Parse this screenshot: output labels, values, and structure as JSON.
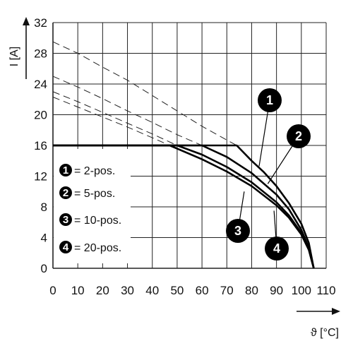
{
  "chart_data": {
    "type": "line",
    "xlabel": "ϑ [°C]",
    "ylabel": "I [A]",
    "xlim": [
      0,
      110
    ],
    "ylim": [
      0,
      32
    ],
    "xticks": [
      0,
      10,
      20,
      30,
      40,
      50,
      60,
      70,
      80,
      90,
      100,
      110
    ],
    "yticks": [
      0,
      4,
      8,
      12,
      16,
      20,
      24,
      28,
      32
    ],
    "grid": true,
    "legend": {
      "placement": "lower-left",
      "entries": [
        {
          "badge": "1",
          "label": "= 2-pos."
        },
        {
          "badge": "2",
          "label": "= 5-pos."
        },
        {
          "badge": "3",
          "label": "= 10-pos."
        },
        {
          "badge": "4",
          "label": "= 20-pos."
        }
      ]
    },
    "series": [
      {
        "badge": "1",
        "derating": [
          [
            0,
            16
          ],
          [
            74,
            16
          ],
          [
            80,
            14
          ],
          [
            85,
            12.5
          ],
          [
            90,
            10.7
          ],
          [
            95,
            8.5
          ],
          [
            100,
            5.8
          ],
          [
            103,
            3.3
          ],
          [
            105,
            0
          ]
        ],
        "theoretical": [
          [
            0,
            29.5
          ],
          [
            10,
            28
          ],
          [
            20,
            26.2
          ],
          [
            30,
            24.5
          ],
          [
            40,
            22.5
          ],
          [
            50,
            20.5
          ],
          [
            60,
            18.5
          ],
          [
            70,
            16.7
          ],
          [
            74,
            16
          ]
        ]
      },
      {
        "badge": "2",
        "derating": [
          [
            0,
            16
          ],
          [
            60,
            16
          ],
          [
            70,
            14.5
          ],
          [
            80,
            12.4
          ],
          [
            90,
            9.6
          ],
          [
            95,
            7.7
          ],
          [
            100,
            5
          ],
          [
            103,
            2.7
          ],
          [
            105,
            0
          ]
        ],
        "theoretical": [
          [
            0,
            25
          ],
          [
            10,
            23.6
          ],
          [
            20,
            22.1
          ],
          [
            30,
            20.5
          ],
          [
            40,
            19
          ],
          [
            50,
            17.4
          ],
          [
            60,
            16
          ]
        ]
      },
      {
        "badge": "3",
        "derating": [
          [
            0,
            16
          ],
          [
            50,
            16
          ],
          [
            60,
            14.8
          ],
          [
            70,
            13.2
          ],
          [
            80,
            11.2
          ],
          [
            90,
            8.6
          ],
          [
            95,
            6.9
          ],
          [
            100,
            4.6
          ],
          [
            103,
            2.5
          ],
          [
            105,
            0
          ]
        ],
        "theoretical": [
          [
            0,
            23
          ],
          [
            10,
            21.7
          ],
          [
            20,
            20.3
          ],
          [
            30,
            18.9
          ],
          [
            40,
            17.5
          ],
          [
            50,
            16
          ]
        ]
      },
      {
        "badge": "4",
        "derating": [
          [
            0,
            16
          ],
          [
            47,
            16
          ],
          [
            60,
            14.2
          ],
          [
            70,
            12.6
          ],
          [
            80,
            10.7
          ],
          [
            90,
            8.2
          ],
          [
            95,
            6.6
          ],
          [
            100,
            4.4
          ],
          [
            103,
            2.4
          ],
          [
            105,
            0
          ]
        ],
        "theoretical": [
          [
            0,
            22.3
          ],
          [
            10,
            21
          ],
          [
            20,
            19.7
          ],
          [
            30,
            18.4
          ],
          [
            40,
            17
          ],
          [
            47,
            16
          ]
        ]
      }
    ],
    "callouts": [
      {
        "badge": "1",
        "point": [
          83,
          13.3
        ]
      },
      {
        "badge": "2",
        "point": [
          86.5,
          11
        ]
      },
      {
        "badge": "3",
        "point": [
          77,
          10
        ]
      },
      {
        "badge": "4",
        "point": [
          89,
          7.5
        ]
      }
    ]
  }
}
